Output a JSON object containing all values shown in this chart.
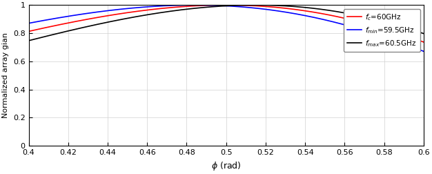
{
  "phi_min": 0.4,
  "phi_max": 0.6,
  "n_points": 5000,
  "N": 16,
  "d_over_lambda": 0.5,
  "phi_0": 0.5,
  "fc": 60.0,
  "fmin": 59.5,
  "fmax": 60.5,
  "colors": {
    "fc": "#ff0000",
    "fmin": "#0000ff",
    "fmax": "#000000"
  },
  "legend_labels": {
    "fc": "$f_c$=60GHz",
    "fmin": "$f_{min}$=59.5GHz",
    "fmax": "$f_{max}$=60.5GHz"
  },
  "xlabel": "$\\phi$ (rad)",
  "ylabel": "Normalized array gian",
  "xlim": [
    0.4,
    0.6
  ],
  "ylim": [
    0,
    1
  ],
  "xticks": [
    0.4,
    0.42,
    0.44,
    0.46,
    0.48,
    0.5,
    0.52,
    0.54,
    0.56,
    0.58,
    0.6
  ],
  "yticks": [
    0,
    0.2,
    0.4,
    0.6,
    0.8,
    1
  ],
  "linewidth": 1.2,
  "figsize": [
    6.26,
    2.52
  ],
  "dpi": 100
}
